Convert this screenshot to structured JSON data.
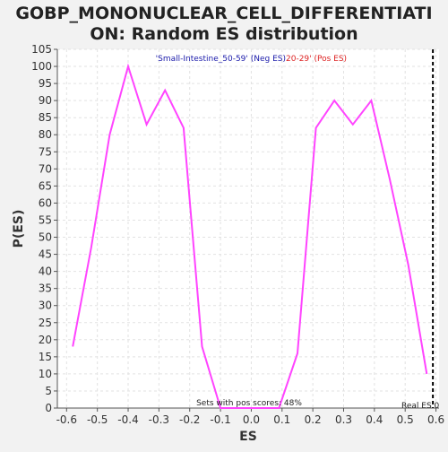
{
  "chart_data": {
    "type": "line",
    "title": "GOBP_MONONUCLEAR_CELL_DIFFERENTIATION: Random ES distribution",
    "title_lines": [
      "GOBP_MONONUCLEAR_CELL_DIFFERENTIATI",
      "ON: Random ES distribution"
    ],
    "xlabel": "ES",
    "ylabel": "P(ES)",
    "xlim": [
      -0.63,
      0.61
    ],
    "ylim": [
      0,
      105
    ],
    "xticks": [
      -0.6,
      -0.5,
      -0.4,
      -0.3,
      -0.2,
      -0.1,
      0.0,
      0.1,
      0.2,
      0.3,
      0.4,
      0.5,
      0.6
    ],
    "xtick_labels": [
      "-0.6",
      "-0.5",
      "-0.4",
      "-0.3",
      "-0.2",
      "-0.1",
      "0.0",
      "0.1",
      "0.2",
      "0.3",
      "0.4",
      "0.5",
      "0.6"
    ],
    "yticks": [
      0,
      5,
      10,
      15,
      20,
      25,
      30,
      35,
      40,
      45,
      50,
      55,
      60,
      65,
      70,
      75,
      80,
      85,
      90,
      95,
      100,
      105
    ],
    "grid": true,
    "series": [
      {
        "color": "#ff44ff",
        "x": [
          -0.58,
          -0.52,
          -0.46,
          -0.4,
          -0.34,
          -0.28,
          -0.22,
          -0.16,
          -0.1,
          -0.04,
          0.03,
          0.09,
          0.15,
          0.21,
          0.27,
          0.33,
          0.39,
          0.45,
          0.51,
          0.57
        ],
        "y": [
          18,
          47,
          80,
          100,
          83,
          93,
          82,
          18,
          0,
          0,
          0,
          0,
          16,
          82,
          90,
          83,
          90,
          67,
          42,
          10
        ]
      }
    ],
    "legend": {
      "placement": "top",
      "neg_label": "'Small-Intestine_50-59' (Neg ES)",
      "pos_label": "20-29' (Pos ES)",
      "neg_color": "#1a1aaa",
      "pos_color": "#dd2222"
    },
    "annotations": {
      "pos_scores_text": "Sets with pos scores: 48%",
      "real_es_label": "Real ES 0",
      "real_es_x": 0.59
    }
  }
}
